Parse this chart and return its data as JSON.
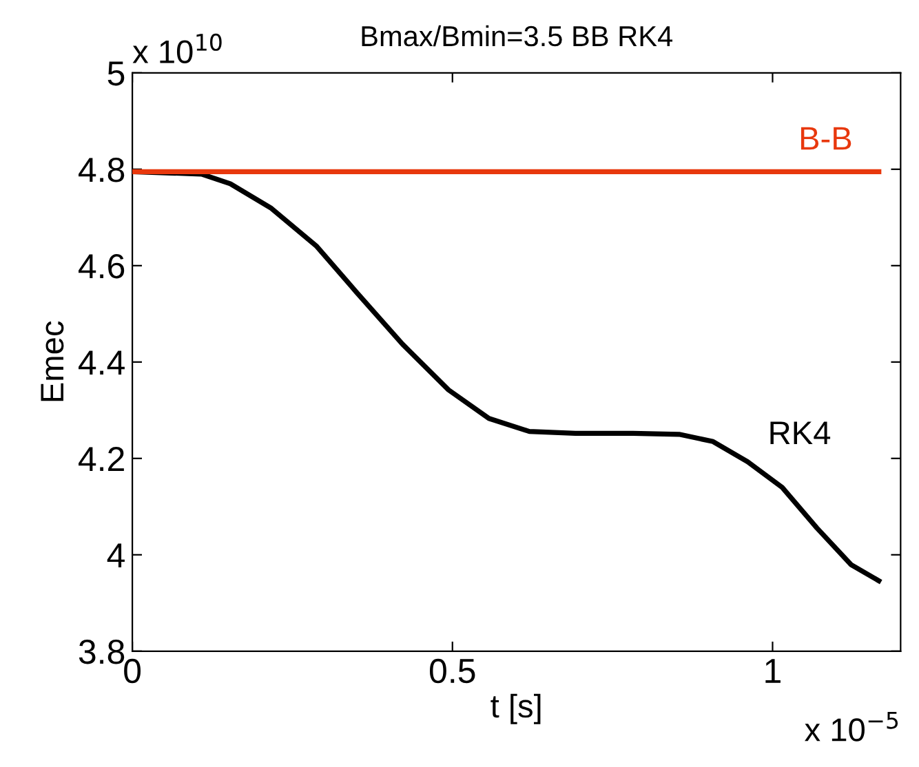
{
  "chart_data": {
    "type": "line",
    "title": "Bmax/Bmin=3.5 BB RK4",
    "xlabel": "t [s]",
    "ylabel": "Emec",
    "annotations": [
      "x 10$^{10}$",
      "x 10$^{−5}$"
    ],
    "xlim": [
      0,
      1.2
    ],
    "xticks": [
      0,
      0.5,
      1
    ],
    "ylim": [
      3.8,
      5
    ],
    "yticks": [
      3.8,
      4,
      4.2,
      4.4,
      4.6,
      4.8,
      5
    ],
    "grid": false,
    "legend": false,
    "line_style": "solid",
    "marker": "none",
    "series": [
      {
        "name": "B-B",
        "color": "#e8380d",
        "x": [
          0,
          1.166
        ],
        "values": [
          4.795,
          4.795
        ]
      },
      {
        "name": "RK4",
        "color": "#000000",
        "x": [
          0,
          0.108,
          0.153,
          0.216,
          0.288,
          0.35,
          0.422,
          0.494,
          0.557,
          0.62,
          0.692,
          0.782,
          0.854,
          0.907,
          0.961,
          1.015,
          1.069,
          1.123,
          1.166
        ],
        "values": [
          4.795,
          4.79,
          4.77,
          4.72,
          4.64,
          4.545,
          4.437,
          4.342,
          4.283,
          4.256,
          4.252,
          4.252,
          4.25,
          4.235,
          4.193,
          4.14,
          4.056,
          3.979,
          3.946
        ]
      }
    ]
  }
}
